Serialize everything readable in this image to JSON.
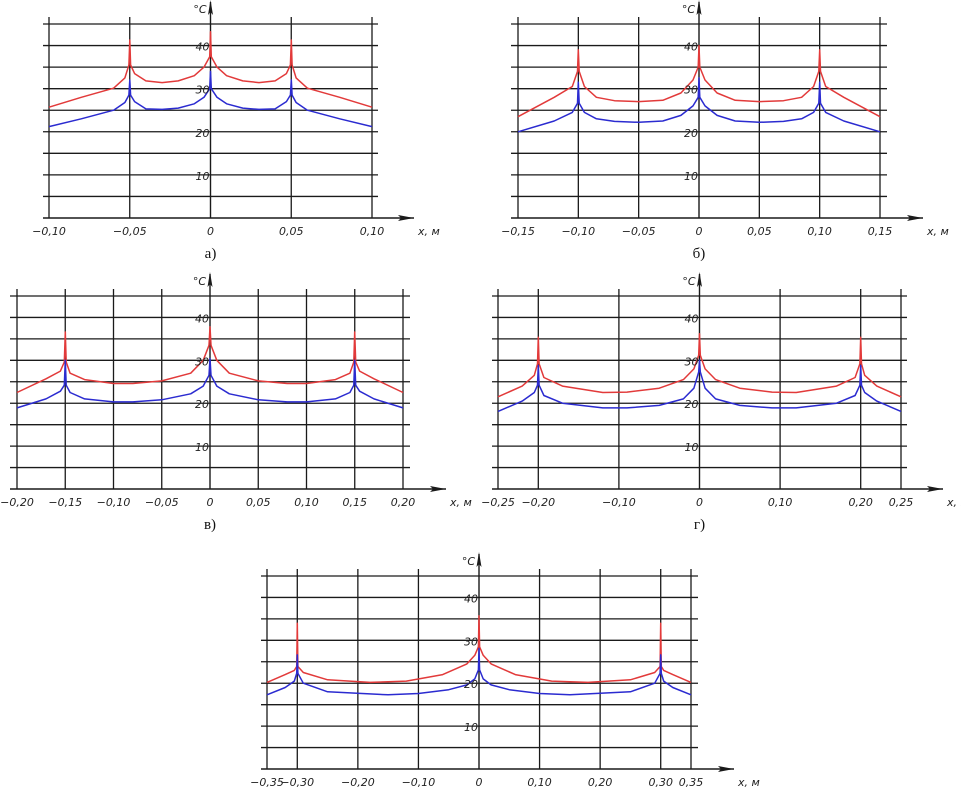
{
  "chart_data": [
    {
      "panel_label": "а)",
      "type": "line",
      "ylabel": "°C",
      "xlabel": "x, м",
      "xlim": [
        -0.1,
        0.1
      ],
      "ylim": [
        0,
        45
      ],
      "grid": true,
      "y_grid_step": 5,
      "symmetric_about_zero": true,
      "x_tick_values": [
        -0.1,
        -0.05,
        0,
        0.05,
        0.1
      ],
      "x_ticks": [
        "−0,10",
        "−0,05",
        "0",
        "0,05",
        "0,10"
      ],
      "y_tick_values": [
        10,
        20,
        30,
        40
      ],
      "y_ticks": [
        "10",
        "20",
        "30",
        "40"
      ],
      "series": [
        {
          "color": "#e23a3a",
          "points": [
            [
              -0.1,
              25.7
            ],
            [
              -0.08,
              28
            ],
            [
              -0.06,
              30.1
            ],
            [
              -0.053,
              32.5
            ],
            [
              -0.0505,
              35.5
            ],
            [
              -0.05,
              41.3
            ],
            [
              -0.0495,
              35.5
            ],
            [
              -0.047,
              33.5
            ],
            [
              -0.04,
              31.8
            ],
            [
              -0.03,
              31.4
            ],
            [
              -0.02,
              31.8
            ],
            [
              -0.01,
              33
            ],
            [
              -0.004,
              35
            ],
            [
              -0.0005,
              37.4
            ],
            [
              0,
              43.2
            ]
          ]
        },
        {
          "color": "#2b2bd0",
          "points": [
            [
              -0.1,
              21.2
            ],
            [
              -0.08,
              23
            ],
            [
              -0.06,
              25
            ],
            [
              -0.053,
              26.8
            ],
            [
              -0.0505,
              28.5
            ],
            [
              -0.05,
              32
            ],
            [
              -0.0495,
              28.5
            ],
            [
              -0.047,
              27
            ],
            [
              -0.04,
              25.3
            ],
            [
              -0.03,
              25.2
            ],
            [
              -0.02,
              25.5
            ],
            [
              -0.01,
              26.5
            ],
            [
              -0.004,
              28
            ],
            [
              -0.0005,
              30
            ],
            [
              0,
              34
            ]
          ]
        }
      ]
    },
    {
      "panel_label": "б)",
      "type": "line",
      "ylabel": "°C",
      "xlabel": "x, м",
      "xlim": [
        -0.15,
        0.15
      ],
      "ylim": [
        0,
        45
      ],
      "grid": true,
      "y_grid_step": 5,
      "symmetric_about_zero": true,
      "x_tick_values": [
        -0.15,
        -0.1,
        -0.05,
        0,
        0.05,
        0.1,
        0.15
      ],
      "x_ticks": [
        "−0,15",
        "−0,10",
        "−0,05",
        "0",
        "0,05",
        "0,10",
        "0,15"
      ],
      "y_tick_values": [
        10,
        20,
        30,
        40
      ],
      "y_ticks": [
        "10",
        "20",
        "30",
        "40"
      ],
      "series": [
        {
          "color": "#e23a3a",
          "points": [
            [
              -0.15,
              23.5
            ],
            [
              -0.12,
              28
            ],
            [
              -0.105,
              30.5
            ],
            [
              -0.1007,
              34
            ],
            [
              -0.1,
              39
            ],
            [
              -0.0993,
              34
            ],
            [
              -0.095,
              30.5
            ],
            [
              -0.085,
              28
            ],
            [
              -0.07,
              27.2
            ],
            [
              -0.05,
              27
            ],
            [
              -0.03,
              27.3
            ],
            [
              -0.015,
              29
            ],
            [
              -0.005,
              32
            ],
            [
              -0.0007,
              35
            ],
            [
              0,
              40
            ]
          ]
        },
        {
          "color": "#2b2bd0",
          "points": [
            [
              -0.15,
              20
            ],
            [
              -0.12,
              22.5
            ],
            [
              -0.105,
              24.5
            ],
            [
              -0.1007,
              26.6
            ],
            [
              -0.1,
              31.5
            ],
            [
              -0.0993,
              26.6
            ],
            [
              -0.095,
              24.5
            ],
            [
              -0.085,
              23
            ],
            [
              -0.07,
              22.4
            ],
            [
              -0.05,
              22.2
            ],
            [
              -0.03,
              22.5
            ],
            [
              -0.015,
              23.8
            ],
            [
              -0.005,
              26
            ],
            [
              -0.0007,
              28
            ],
            [
              0,
              32.5
            ]
          ]
        }
      ]
    },
    {
      "panel_label": "в)",
      "type": "line",
      "ylabel": "°C",
      "xlabel": "x, м",
      "xlim": [
        -0.2,
        0.2
      ],
      "ylim": [
        0,
        45
      ],
      "grid": true,
      "y_grid_step": 5,
      "symmetric_about_zero": true,
      "x_tick_values": [
        -0.2,
        -0.15,
        -0.1,
        -0.05,
        0,
        0.05,
        0.1,
        0.15,
        0.2
      ],
      "x_ticks": [
        "−0,20",
        "−0,15",
        "−0,10",
        "−0,05",
        "0",
        "0,05",
        "0,10",
        "0,15",
        "0,20"
      ],
      "y_tick_values": [
        10,
        20,
        30,
        40
      ],
      "y_ticks": [
        "10",
        "20",
        "30",
        "40"
      ],
      "series": [
        {
          "color": "#e23a3a",
          "points": [
            [
              -0.2,
              22.5
            ],
            [
              -0.17,
              25.7
            ],
            [
              -0.155,
              27.5
            ],
            [
              -0.151,
              29.6
            ],
            [
              -0.15,
              36.6
            ],
            [
              -0.149,
              29.6
            ],
            [
              -0.145,
              27
            ],
            [
              -0.13,
              25.5
            ],
            [
              -0.1,
              24.6
            ],
            [
              -0.08,
              24.6
            ],
            [
              -0.05,
              25.2
            ],
            [
              -0.02,
              27
            ],
            [
              -0.007,
              30
            ],
            [
              -0.001,
              33.5
            ],
            [
              0,
              37.8
            ]
          ]
        },
        {
          "color": "#2b2bd0",
          "points": [
            [
              -0.2,
              18.9
            ],
            [
              -0.17,
              21
            ],
            [
              -0.155,
              22.8
            ],
            [
              -0.151,
              24.2
            ],
            [
              -0.15,
              30
            ],
            [
              -0.149,
              24.2
            ],
            [
              -0.145,
              22.5
            ],
            [
              -0.13,
              21
            ],
            [
              -0.1,
              20.3
            ],
            [
              -0.08,
              20.3
            ],
            [
              -0.05,
              20.8
            ],
            [
              -0.02,
              22.2
            ],
            [
              -0.007,
              24
            ],
            [
              -0.001,
              26.5
            ],
            [
              0,
              30.4
            ]
          ]
        }
      ]
    },
    {
      "panel_label": "г)",
      "type": "line",
      "ylabel": "°C",
      "xlabel": "x, м",
      "xlim": [
        -0.25,
        0.25
      ],
      "ylim": [
        0,
        45
      ],
      "grid": true,
      "y_grid_step": 5,
      "symmetric_about_zero": true,
      "x_tick_values": [
        -0.25,
        -0.2,
        -0.1,
        0,
        0.1,
        0.2,
        0.25
      ],
      "x_ticks": [
        "−0,25",
        "−0,20",
        "−0,10",
        "0",
        "0,10",
        "0,20",
        "0,25"
      ],
      "y_tick_values": [
        10,
        20,
        30,
        40
      ],
      "y_ticks": [
        "10",
        "20",
        "30",
        "40"
      ],
      "series": [
        {
          "color": "#e23a3a",
          "points": [
            [
              -0.25,
              21.5
            ],
            [
              -0.22,
              24
            ],
            [
              -0.205,
              26.5
            ],
            [
              -0.201,
              29.2
            ],
            [
              -0.2,
              35.4
            ],
            [
              -0.199,
              29.2
            ],
            [
              -0.193,
              26
            ],
            [
              -0.17,
              24
            ],
            [
              -0.12,
              22.5
            ],
            [
              -0.09,
              22.6
            ],
            [
              -0.05,
              23.5
            ],
            [
              -0.02,
              25.5
            ],
            [
              -0.007,
              28
            ],
            [
              -0.001,
              31.2
            ],
            [
              0,
              36.2
            ]
          ]
        },
        {
          "color": "#2b2bd0",
          "points": [
            [
              -0.25,
              18.1
            ],
            [
              -0.22,
              20.5
            ],
            [
              -0.205,
              22.5
            ],
            [
              -0.201,
              24.2
            ],
            [
              -0.2,
              28.8
            ],
            [
              -0.199,
              24.2
            ],
            [
              -0.193,
              21.8
            ],
            [
              -0.17,
              20
            ],
            [
              -0.12,
              18.9
            ],
            [
              -0.09,
              18.9
            ],
            [
              -0.05,
              19.5
            ],
            [
              -0.02,
              21
            ],
            [
              -0.007,
              23.5
            ],
            [
              -0.001,
              27.3
            ],
            [
              0,
              30
            ]
          ]
        }
      ]
    },
    {
      "panel_label": "",
      "type": "line",
      "ylabel": "°C",
      "xlabel": "x, м",
      "xlim": [
        -0.35,
        0.35
      ],
      "ylim": [
        0,
        45
      ],
      "grid": true,
      "y_grid_step": 5,
      "symmetric_about_zero": true,
      "x_tick_values": [
        -0.35,
        -0.3,
        -0.2,
        -0.1,
        0,
        0.1,
        0.2,
        0.3,
        0.35
      ],
      "x_ticks": [
        "−0,35",
        "−0,30",
        "−0,20",
        "−0,10",
        "0",
        "0,10",
        "0,20",
        "0,30",
        "0,35"
      ],
      "y_tick_values": [
        10,
        20,
        30,
        40
      ],
      "y_ticks": [
        "10",
        "20",
        "30",
        "40"
      ],
      "series": [
        {
          "color": "#e23a3a",
          "points": [
            [
              -0.35,
              20.2
            ],
            [
              -0.32,
              22
            ],
            [
              -0.305,
              23
            ],
            [
              -0.301,
              23.9
            ],
            [
              -0.3,
              34
            ],
            [
              -0.299,
              23.9
            ],
            [
              -0.29,
              22.5
            ],
            [
              -0.25,
              20.8
            ],
            [
              -0.18,
              20.2
            ],
            [
              -0.12,
              20.5
            ],
            [
              -0.06,
              22
            ],
            [
              -0.02,
              24.5
            ],
            [
              -0.007,
              26.5
            ],
            [
              -0.001,
              28.5
            ],
            [
              0,
              35.7
            ]
          ]
        },
        {
          "color": "#2b2bd0",
          "points": [
            [
              -0.35,
              17.3
            ],
            [
              -0.32,
              19
            ],
            [
              -0.305,
              20.5
            ],
            [
              -0.301,
              22.3
            ],
            [
              -0.3,
              26.6
            ],
            [
              -0.299,
              22.3
            ],
            [
              -0.29,
              20
            ],
            [
              -0.25,
              18
            ],
            [
              -0.15,
              17.3
            ],
            [
              -0.1,
              17.6
            ],
            [
              -0.05,
              18.5
            ],
            [
              -0.02,
              19.6
            ],
            [
              -0.007,
              21
            ],
            [
              -0.001,
              23.1
            ],
            [
              0,
              28.1
            ]
          ]
        }
      ]
    }
  ]
}
